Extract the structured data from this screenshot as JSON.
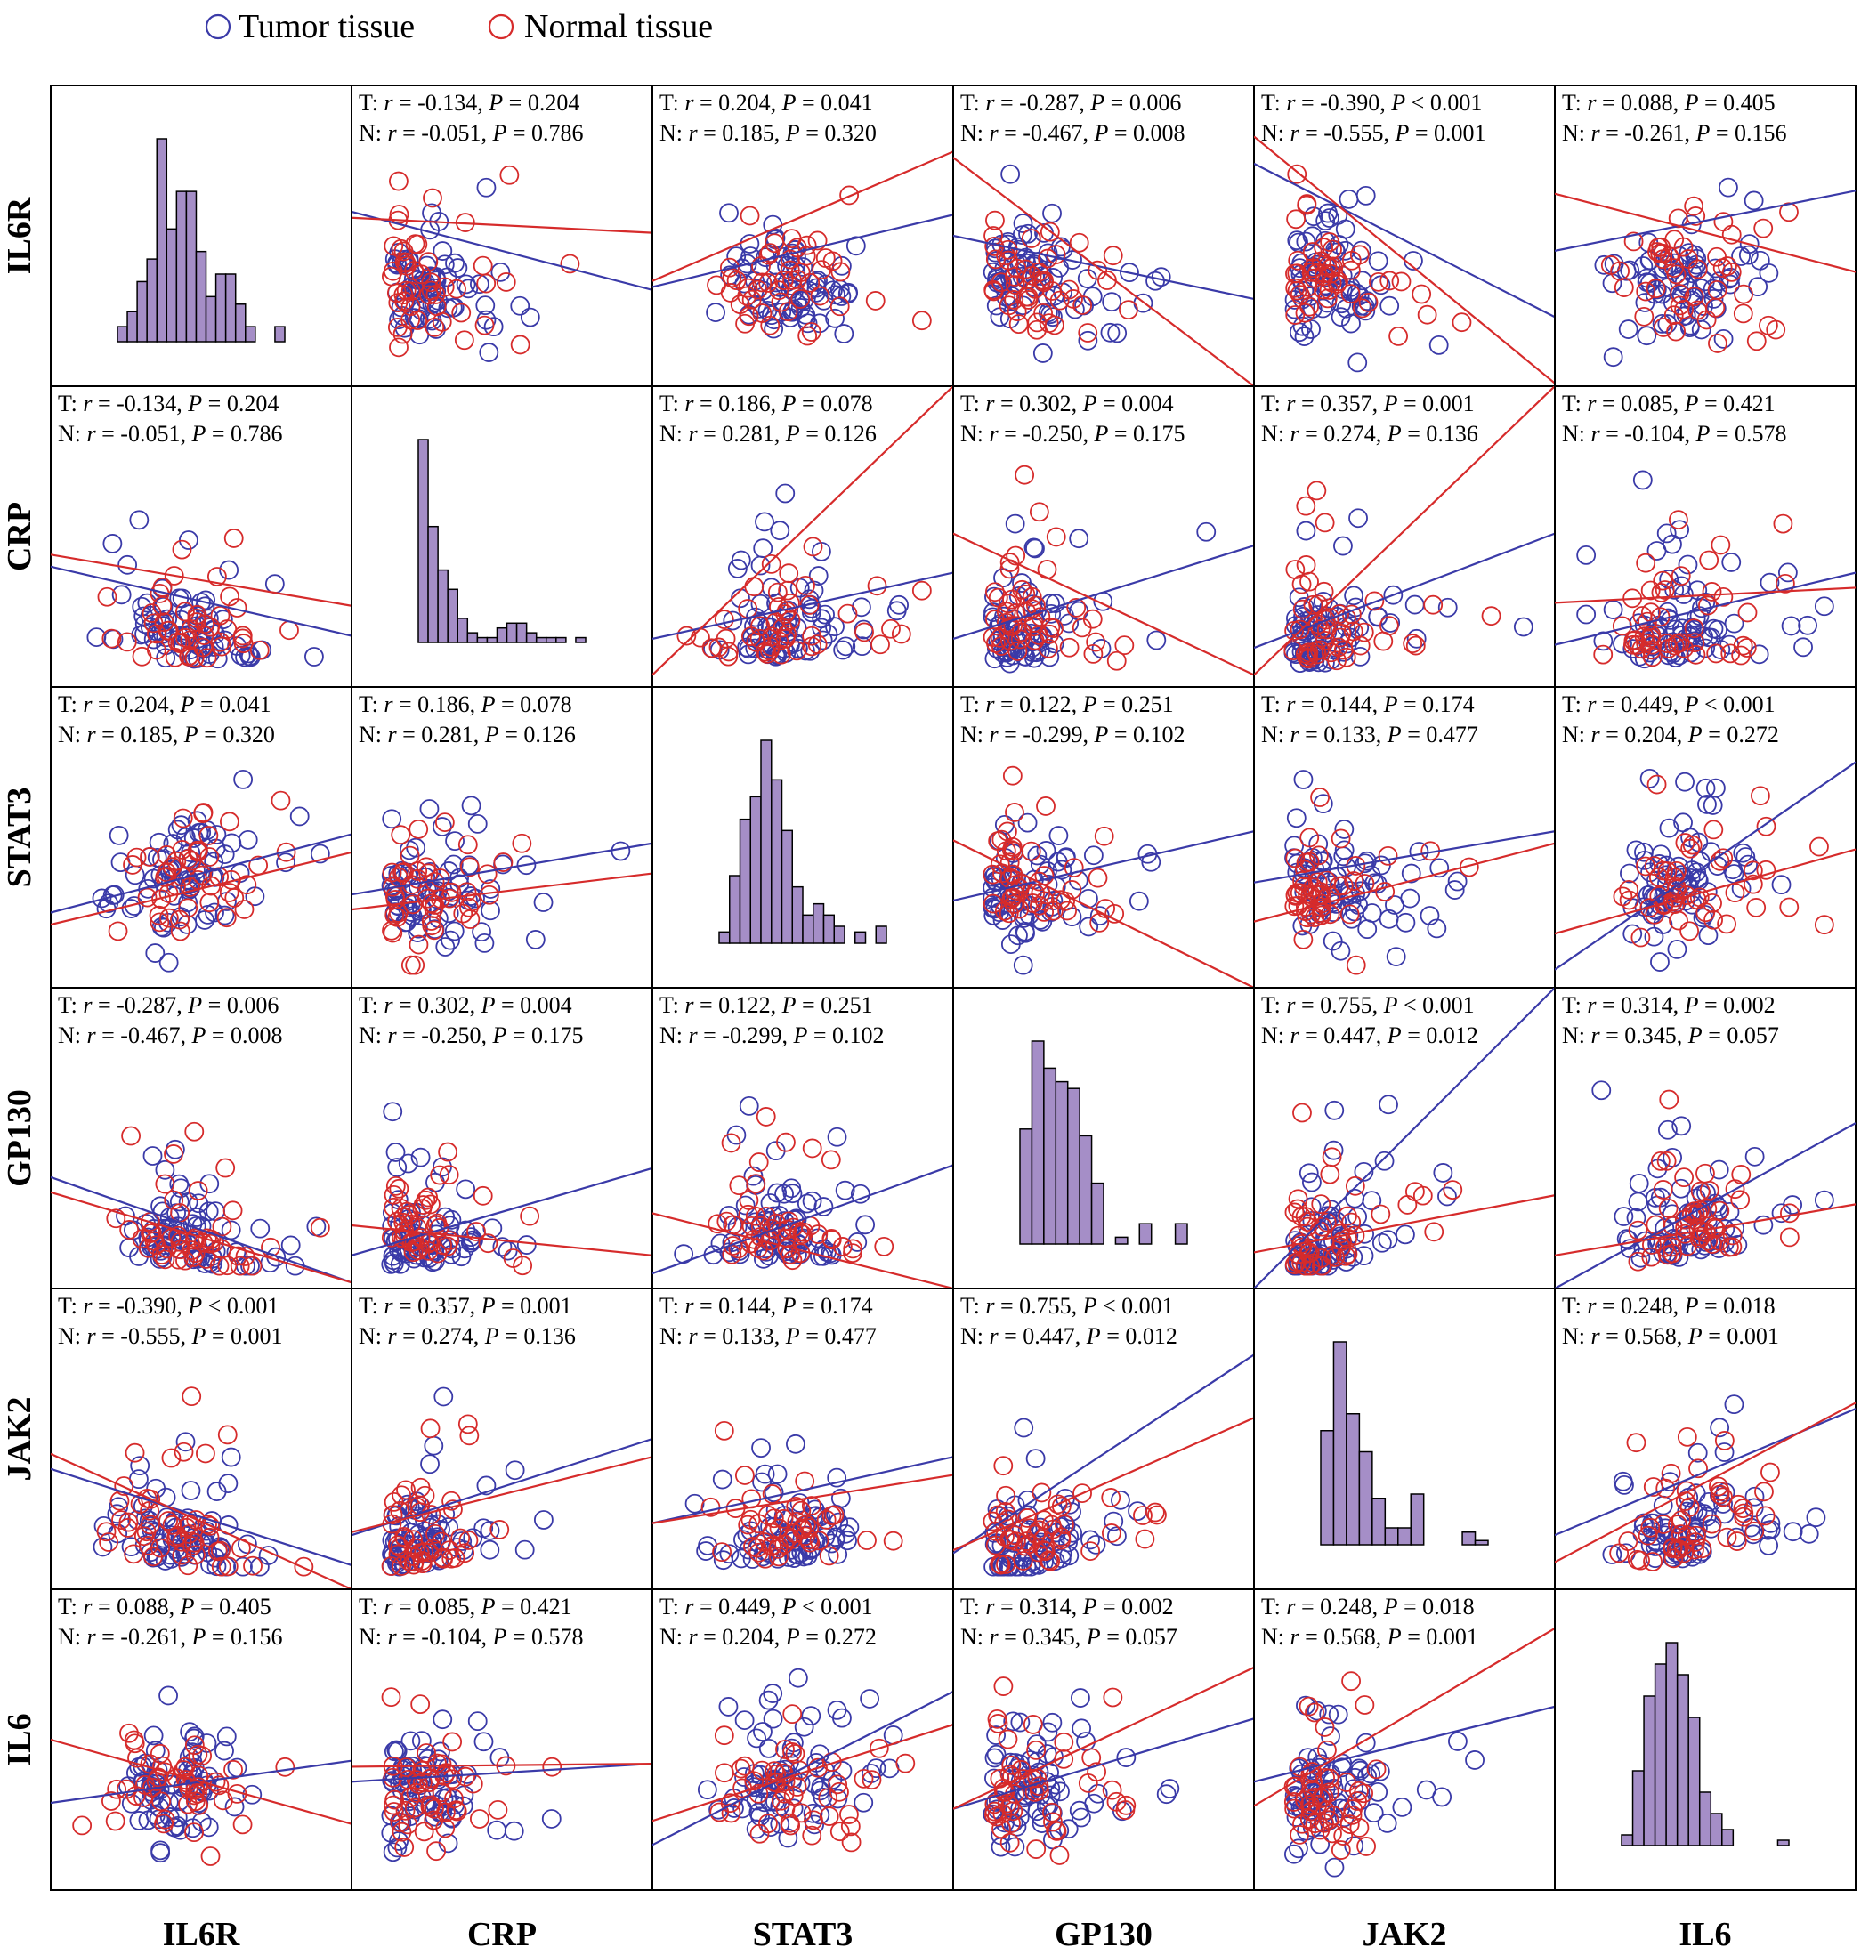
{
  "chart_data": {
    "type": "scatter-matrix",
    "title": "",
    "variables": [
      "IL6R",
      "CRP",
      "STAT3",
      "GP130",
      "JAK2",
      "IL6"
    ],
    "legend": {
      "placement": "top-left",
      "entries": [
        {
          "name": "Tumor tissue",
          "color": "#3a3aa8"
        },
        {
          "name": "Normal tissue",
          "color": "#d62b2b"
        }
      ]
    },
    "colors": {
      "tumor": "#3a3aa8",
      "normal": "#d62b2b",
      "histogram": "#a58ec7"
    },
    "stat_labels": {
      "tumor_prefix": "T: ",
      "normal_prefix": "N: ",
      "r": "r",
      "p": "P"
    },
    "correlations": [
      {
        "a": "IL6R",
        "b": "CRP",
        "tumor": {
          "r": "-0.134",
          "rel": "=",
          "p": "0.204"
        },
        "normal": {
          "r": "-0.051",
          "rel": "=",
          "p": "0.786"
        }
      },
      {
        "a": "IL6R",
        "b": "STAT3",
        "tumor": {
          "r": "0.204",
          "rel": "=",
          "p": "0.041"
        },
        "normal": {
          "r": "0.185",
          "rel": "=",
          "p": "0.320"
        }
      },
      {
        "a": "IL6R",
        "b": "GP130",
        "tumor": {
          "r": "-0.287",
          "rel": "=",
          "p": "0.006"
        },
        "normal": {
          "r": "-0.467",
          "rel": "=",
          "p": "0.008"
        }
      },
      {
        "a": "IL6R",
        "b": "JAK2",
        "tumor": {
          "r": "-0.390",
          "rel": "<",
          "p": "0.001"
        },
        "normal": {
          "r": "-0.555",
          "rel": "=",
          "p": "0.001"
        }
      },
      {
        "a": "IL6R",
        "b": "IL6",
        "tumor": {
          "r": "0.088",
          "rel": "=",
          "p": "0.405"
        },
        "normal": {
          "r": "-0.261",
          "rel": "=",
          "p": "0.156"
        }
      },
      {
        "a": "CRP",
        "b": "STAT3",
        "tumor": {
          "r": "0.186",
          "rel": "=",
          "p": "0.078"
        },
        "normal": {
          "r": "0.281",
          "rel": "=",
          "p": "0.126"
        }
      },
      {
        "a": "CRP",
        "b": "GP130",
        "tumor": {
          "r": "0.302",
          "rel": "=",
          "p": "0.004"
        },
        "normal": {
          "r": "-0.250",
          "rel": "=",
          "p": "0.175"
        }
      },
      {
        "a": "CRP",
        "b": "JAK2",
        "tumor": {
          "r": "0.357",
          "rel": "=",
          "p": "0.001"
        },
        "normal": {
          "r": "0.274",
          "rel": "=",
          "p": "0.136"
        }
      },
      {
        "a": "CRP",
        "b": "IL6",
        "tumor": {
          "r": "0.085",
          "rel": "=",
          "p": "0.421"
        },
        "normal": {
          "r": "-0.104",
          "rel": "=",
          "p": "0.578"
        }
      },
      {
        "a": "STAT3",
        "b": "GP130",
        "tumor": {
          "r": "0.122",
          "rel": "=",
          "p": "0.251"
        },
        "normal": {
          "r": "-0.299",
          "rel": "=",
          "p": "0.102"
        }
      },
      {
        "a": "STAT3",
        "b": "JAK2",
        "tumor": {
          "r": "0.144",
          "rel": "=",
          "p": "0.174"
        },
        "normal": {
          "r": "0.133",
          "rel": "=",
          "p": "0.477"
        }
      },
      {
        "a": "STAT3",
        "b": "IL6",
        "tumor": {
          "r": "0.449",
          "rel": "<",
          "p": "0.001"
        },
        "normal": {
          "r": "0.204",
          "rel": "=",
          "p": "0.272"
        }
      },
      {
        "a": "GP130",
        "b": "JAK2",
        "tumor": {
          "r": "0.755",
          "rel": "<",
          "p": "0.001"
        },
        "normal": {
          "r": "0.447",
          "rel": "=",
          "p": "0.012"
        }
      },
      {
        "a": "GP130",
        "b": "IL6",
        "tumor": {
          "r": "0.314",
          "rel": "=",
          "p": "0.002"
        },
        "normal": {
          "r": "0.345",
          "rel": "=",
          "p": "0.057"
        }
      },
      {
        "a": "JAK2",
        "b": "IL6",
        "tumor": {
          "r": "0.248",
          "rel": "=",
          "p": "0.018"
        },
        "normal": {
          "r": "0.568",
          "rel": "=",
          "p": "0.001"
        }
      }
    ],
    "histograms": {
      "IL6R": [
        2,
        4,
        8,
        11,
        27,
        15,
        20,
        20,
        12,
        6,
        9,
        9,
        5,
        2,
        0,
        0,
        2
      ],
      "CRP": [
        42,
        24,
        15,
        11,
        5,
        2,
        1,
        1,
        3,
        4,
        4,
        2,
        1,
        1,
        1,
        0,
        1
      ],
      "STAT3": [
        2,
        12,
        22,
        26,
        36,
        29,
        20,
        10,
        5,
        7,
        5,
        3,
        0,
        2,
        0,
        3
      ],
      "GP130": [
        17,
        30,
        26,
        24,
        23,
        16,
        9,
        0,
        1,
        0,
        3,
        0,
        0,
        3
      ],
      "JAK2": [
        27,
        48,
        31,
        22,
        11,
        4,
        4,
        12,
        0,
        0,
        0,
        3,
        1
      ],
      "IL6": [
        2,
        14,
        28,
        34,
        38,
        32,
        24,
        10,
        6,
        3,
        0,
        0,
        0,
        0,
        1
      ]
    },
    "scatter_fits": [
      {
        "row": "IL6R",
        "col": "CRP",
        "tumor_line": [
          [
            0,
            0.58
          ],
          [
            1,
            0.32
          ]
        ],
        "normal_line": [
          [
            0,
            0.56
          ],
          [
            1,
            0.51
          ]
        ]
      },
      {
        "row": "IL6R",
        "col": "STAT3",
        "tumor_line": [
          [
            0,
            0.33
          ],
          [
            1,
            0.57
          ]
        ],
        "normal_line": [
          [
            0,
            0.35
          ],
          [
            1,
            0.78
          ]
        ]
      },
      {
        "row": "IL6R",
        "col": "GP130",
        "tumor_line": [
          [
            0,
            0.5
          ],
          [
            1,
            0.29
          ]
        ],
        "normal_line": [
          [
            0,
            0.76
          ],
          [
            1,
            0.0
          ]
        ]
      },
      {
        "row": "IL6R",
        "col": "JAK2",
        "tumor_line": [
          [
            0,
            0.74
          ],
          [
            1,
            0.23
          ]
        ],
        "normal_line": [
          [
            0,
            0.83
          ],
          [
            1,
            0.01
          ]
        ]
      },
      {
        "row": "IL6R",
        "col": "IL6",
        "tumor_line": [
          [
            0,
            0.45
          ],
          [
            1,
            0.65
          ]
        ],
        "normal_line": [
          [
            0,
            0.64
          ],
          [
            1,
            0.38
          ]
        ]
      },
      {
        "row": "CRP",
        "col": "IL6R",
        "tumor_line": [
          [
            0,
            0.4
          ],
          [
            1,
            0.17
          ]
        ],
        "normal_line": [
          [
            0,
            0.44
          ],
          [
            1,
            0.27
          ]
        ]
      },
      {
        "row": "CRP",
        "col": "STAT3",
        "tumor_line": [
          [
            0,
            0.16
          ],
          [
            1,
            0.38
          ]
        ],
        "normal_line": [
          [
            0,
            0.04
          ],
          [
            1,
            1.0
          ]
        ]
      },
      {
        "row": "CRP",
        "col": "GP130",
        "tumor_line": [
          [
            0,
            0.16
          ],
          [
            1,
            0.47
          ]
        ],
        "normal_line": [
          [
            0,
            0.51
          ],
          [
            1,
            0.04
          ]
        ]
      },
      {
        "row": "CRP",
        "col": "JAK2",
        "tumor_line": [
          [
            0,
            0.13
          ],
          [
            1,
            0.51
          ]
        ],
        "normal_line": [
          [
            0,
            0.04
          ],
          [
            1,
            1.0
          ]
        ]
      },
      {
        "row": "CRP",
        "col": "IL6",
        "tumor_line": [
          [
            0,
            0.14
          ],
          [
            1,
            0.38
          ]
        ],
        "normal_line": [
          [
            0,
            0.28
          ],
          [
            1,
            0.33
          ]
        ]
      },
      {
        "row": "STAT3",
        "col": "IL6R",
        "tumor_line": [
          [
            0,
            0.25
          ],
          [
            1,
            0.51
          ]
        ],
        "normal_line": [
          [
            0,
            0.21
          ],
          [
            1,
            0.45
          ]
        ]
      },
      {
        "row": "STAT3",
        "col": "CRP",
        "tumor_line": [
          [
            0,
            0.31
          ],
          [
            1,
            0.48
          ]
        ],
        "normal_line": [
          [
            0,
            0.26
          ],
          [
            1,
            0.38
          ]
        ]
      },
      {
        "row": "STAT3",
        "col": "GP130",
        "tumor_line": [
          [
            0,
            0.29
          ],
          [
            1,
            0.52
          ]
        ],
        "normal_line": [
          [
            0,
            0.49
          ],
          [
            1,
            0.0
          ]
        ]
      },
      {
        "row": "STAT3",
        "col": "JAK2",
        "tumor_line": [
          [
            0,
            0.35
          ],
          [
            1,
            0.52
          ]
        ],
        "normal_line": [
          [
            0,
            0.22
          ],
          [
            1,
            0.48
          ]
        ]
      },
      {
        "row": "STAT3",
        "col": "IL6",
        "tumor_line": [
          [
            0,
            0.06
          ],
          [
            1,
            0.75
          ]
        ],
        "normal_line": [
          [
            0,
            0.18
          ],
          [
            1,
            0.46
          ]
        ]
      },
      {
        "row": "GP130",
        "col": "IL6R",
        "tumor_line": [
          [
            0,
            0.37
          ],
          [
            1,
            0.02
          ]
        ],
        "normal_line": [
          [
            0,
            0.32
          ],
          [
            1,
            0.02
          ]
        ]
      },
      {
        "row": "GP130",
        "col": "CRP",
        "tumor_line": [
          [
            0,
            0.11
          ],
          [
            1,
            0.4
          ]
        ],
        "normal_line": [
          [
            0,
            0.21
          ],
          [
            1,
            0.11
          ]
        ]
      },
      {
        "row": "GP130",
        "col": "STAT3",
        "tumor_line": [
          [
            0,
            0.05
          ],
          [
            1,
            0.41
          ]
        ],
        "normal_line": [
          [
            0,
            0.25
          ],
          [
            1,
            0.0
          ]
        ]
      },
      {
        "row": "GP130",
        "col": "JAK2",
        "tumor_line": [
          [
            0,
            0.0
          ],
          [
            1,
            1.0
          ]
        ],
        "normal_line": [
          [
            0,
            0.12
          ],
          [
            1,
            0.31
          ]
        ]
      },
      {
        "row": "GP130",
        "col": "IL6",
        "tumor_line": [
          [
            0,
            0.0
          ],
          [
            1,
            0.55
          ]
        ],
        "normal_line": [
          [
            0,
            0.11
          ],
          [
            1,
            0.28
          ]
        ]
      },
      {
        "row": "JAK2",
        "col": "IL6R",
        "tumor_line": [
          [
            0,
            0.4
          ],
          [
            1,
            0.08
          ]
        ],
        "normal_line": [
          [
            0,
            0.45
          ],
          [
            1,
            0.0
          ]
        ]
      },
      {
        "row": "JAK2",
        "col": "CRP",
        "tumor_line": [
          [
            0,
            0.18
          ],
          [
            1,
            0.5
          ]
        ],
        "normal_line": [
          [
            0,
            0.19
          ],
          [
            1,
            0.44
          ]
        ]
      },
      {
        "row": "JAK2",
        "col": "STAT3",
        "tumor_line": [
          [
            0,
            0.22
          ],
          [
            1,
            0.44
          ]
        ],
        "normal_line": [
          [
            0,
            0.22
          ],
          [
            1,
            0.38
          ]
        ]
      },
      {
        "row": "JAK2",
        "col": "GP130",
        "tumor_line": [
          [
            0,
            0.12
          ],
          [
            1,
            0.78
          ]
        ],
        "normal_line": [
          [
            0,
            0.13
          ],
          [
            1,
            0.57
          ]
        ]
      },
      {
        "row": "JAK2",
        "col": "IL6",
        "tumor_line": [
          [
            0,
            0.18
          ],
          [
            1,
            0.6
          ]
        ],
        "normal_line": [
          [
            0,
            0.09
          ],
          [
            1,
            0.62
          ]
        ]
      },
      {
        "row": "IL6",
        "col": "IL6R",
        "tumor_line": [
          [
            0,
            0.29
          ],
          [
            1,
            0.43
          ]
        ],
        "normal_line": [
          [
            0,
            0.5
          ],
          [
            1,
            0.22
          ]
        ]
      },
      {
        "row": "IL6",
        "col": "CRP",
        "tumor_line": [
          [
            0,
            0.36
          ],
          [
            1,
            0.42
          ]
        ],
        "normal_line": [
          [
            0,
            0.41
          ],
          [
            1,
            0.42
          ]
        ]
      },
      {
        "row": "IL6",
        "col": "STAT3",
        "tumor_line": [
          [
            0,
            0.15
          ],
          [
            1,
            0.66
          ]
        ],
        "normal_line": [
          [
            0,
            0.23
          ],
          [
            1,
            0.55
          ]
        ]
      },
      {
        "row": "IL6",
        "col": "GP130",
        "tumor_line": [
          [
            0,
            0.27
          ],
          [
            1,
            0.57
          ]
        ],
        "normal_line": [
          [
            0,
            0.27
          ],
          [
            1,
            0.74
          ]
        ]
      },
      {
        "row": "IL6",
        "col": "JAK2",
        "tumor_line": [
          [
            0,
            0.36
          ],
          [
            1,
            0.61
          ]
        ],
        "normal_line": [
          [
            0,
            0.28
          ],
          [
            1,
            0.87
          ]
        ]
      }
    ]
  }
}
